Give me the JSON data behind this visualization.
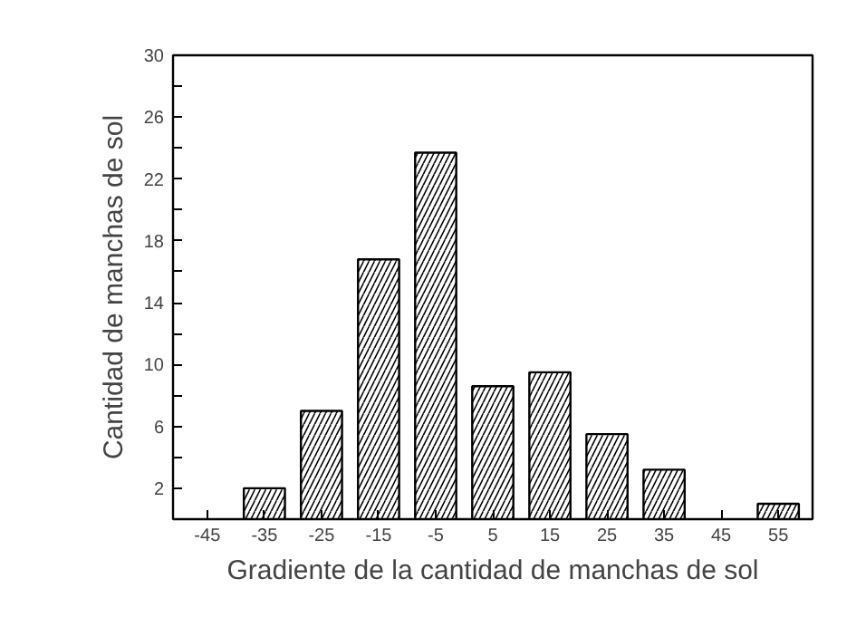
{
  "chart_data": {
    "type": "bar",
    "xlabel": "Gradiente de la cantidad de manchas de sol",
    "ylabel": "Cantidad de manchas de sol",
    "categories": [
      "-45",
      "-35",
      "-25",
      "-15",
      "-5",
      "5",
      "15",
      "25",
      "35",
      "45",
      "55"
    ],
    "values": [
      null,
      2,
      7,
      16.8,
      23.7,
      8.6,
      9.5,
      5.5,
      3.2,
      null,
      1
    ],
    "color": "#ffffff",
    "ylim": [
      0,
      30
    ],
    "yticks": [
      {
        "value": 0,
        "label": null
      },
      2,
      {
        "value": 4,
        "label": null
      },
      6,
      {
        "value": 8,
        "label": null
      },
      10,
      {
        "value": 12,
        "label": null
      },
      14,
      {
        "value": 16,
        "label": null
      },
      18,
      {
        "value": 20,
        "label": null
      },
      22,
      {
        "value": 24,
        "label": null
      },
      26,
      {
        "value": 28,
        "label": null
      },
      30
    ],
    "grid": false
  }
}
